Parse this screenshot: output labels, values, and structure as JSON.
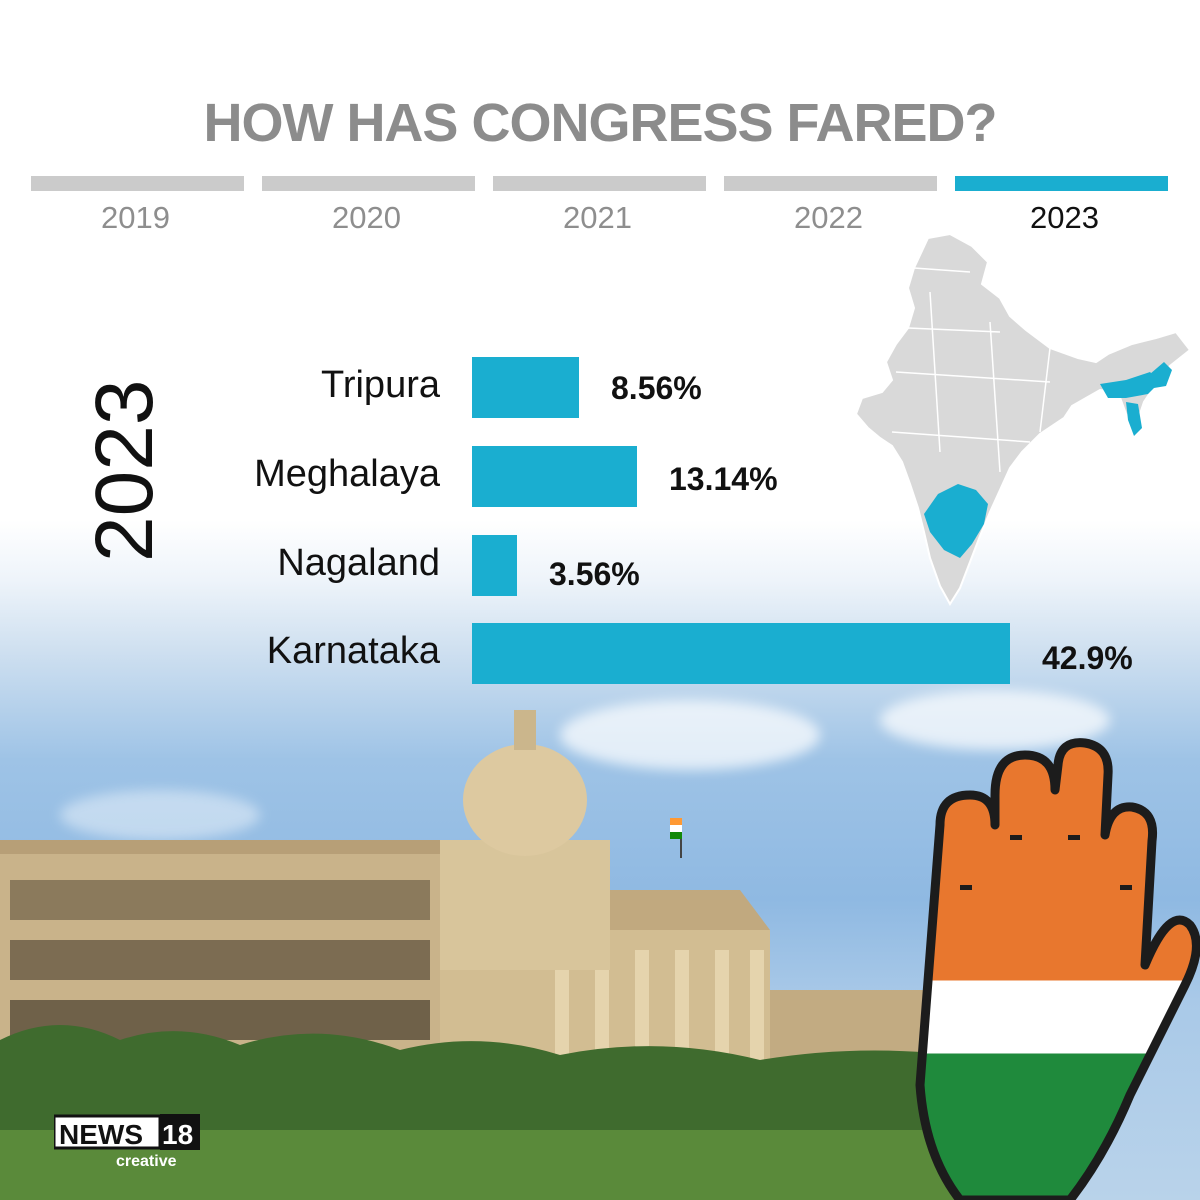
{
  "title": "HOW HAS CONGRESS FARED?",
  "timeline": {
    "years": [
      "2019",
      "2020",
      "2021",
      "2022",
      "2023"
    ],
    "active_index": 4
  },
  "side_year": "2023",
  "chart_data": {
    "type": "bar",
    "orientation": "horizontal",
    "categories": [
      "Tripura",
      "Meghalaya",
      "Nagaland",
      "Karnataka"
    ],
    "values": [
      8.56,
      13.14,
      3.56,
      42.9
    ],
    "value_labels": [
      "8.56%",
      "13.14%",
      "3.56%",
      "42.9%"
    ],
    "title": "",
    "xlabel": "",
    "ylabel": "",
    "bar_color": "#1aaed0",
    "grid": false
  },
  "map": {
    "icon": "india-map-icon",
    "base_color": "#d9d9d9",
    "highlight_color": "#1aaed0"
  },
  "logo": {
    "brand": "NEWS",
    "number": "18",
    "sub": "creative"
  },
  "colors": {
    "accent": "#1aaed0",
    "inactive": "#cbcbcb",
    "title": "#8c8c8c"
  }
}
